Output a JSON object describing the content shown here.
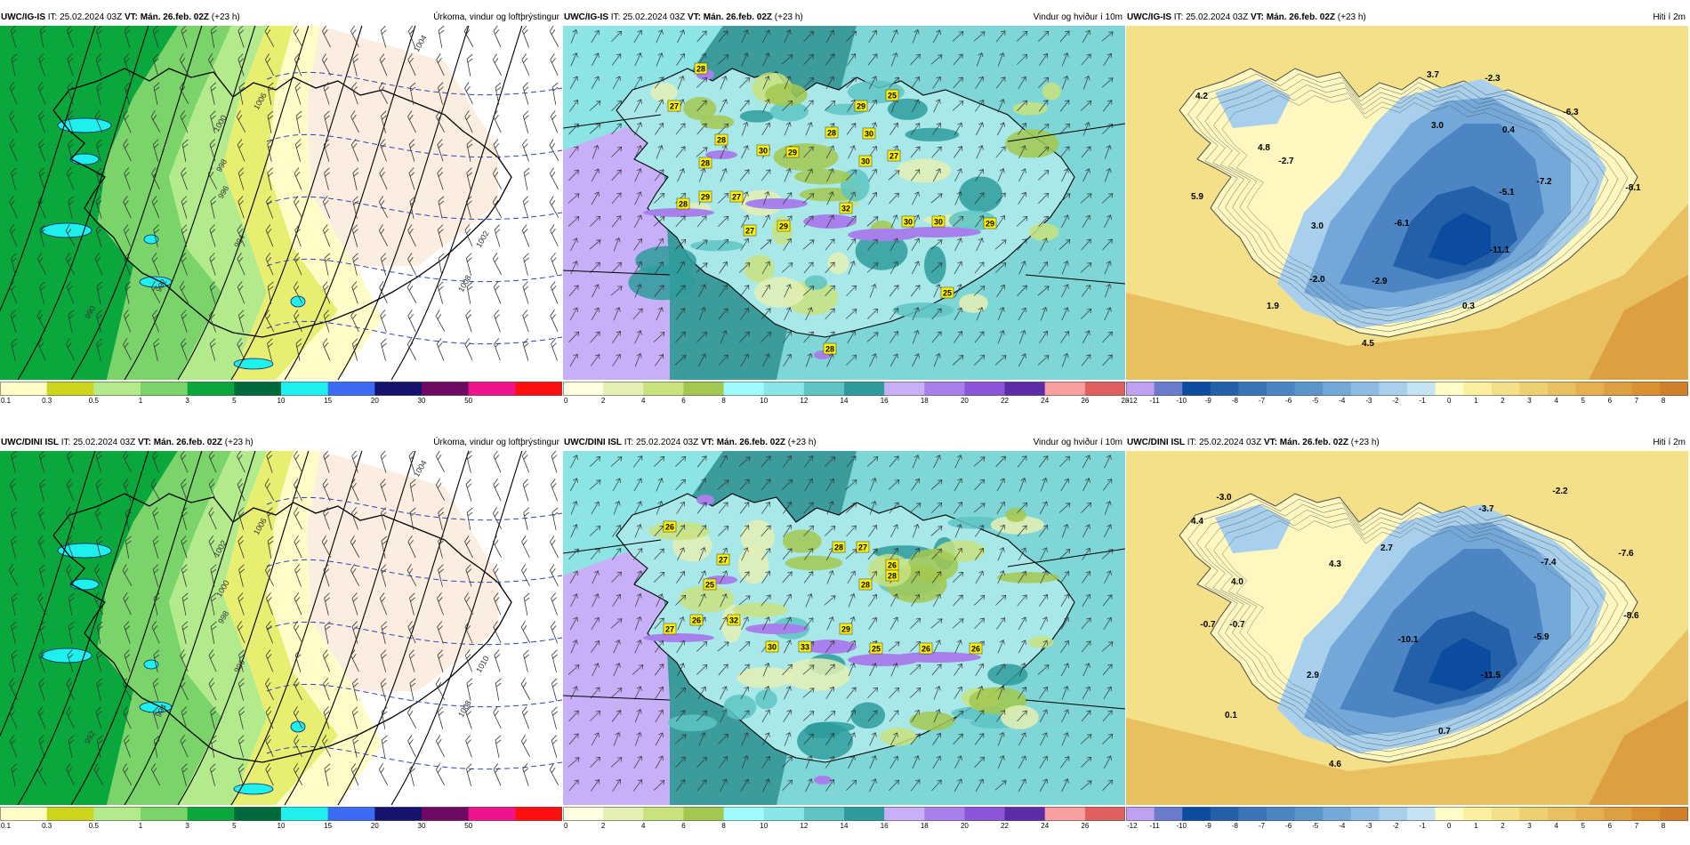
{
  "panels": [
    {
      "model": "UWC/IG-IS",
      "it": "IT: 25.02.2024 03Z",
      "vt_label": "VT:",
      "vt": "Mán. 26.feb. 02Z",
      "lead": "(+23 h)",
      "field": "Úrkoma, vindur og loftþrýstingur",
      "type": "precip",
      "colorbar": [
        "#fffcc8",
        "#cdd41c",
        "#b3ea8c",
        "#7ad46a",
        "#0aa83c",
        "#006a3c",
        "#1ef0ee",
        "#3c6cf4",
        "#14146e",
        "#6e0a64",
        "#f0148c",
        "#ff1010"
      ],
      "ticks": [
        "0.1",
        "0.3",
        "0.5",
        "1",
        "3",
        "5",
        "10",
        "15",
        "20",
        "30",
        "50"
      ],
      "isobars": [
        "1004",
        "1006",
        "1000",
        "998",
        "996",
        "994",
        "992",
        "990",
        "1002",
        "1008"
      ],
      "labels": []
    },
    {
      "model": "UWC/IG-IS",
      "it": "IT: 25.02.2024 03Z",
      "vt_label": "VT:",
      "vt": "Mán. 26.feb. 02Z",
      "lead": "(+23 h)",
      "field": "Vindur og hviður í 10m",
      "type": "wind",
      "colorbar": [
        "#fefee0",
        "#e4f0b4",
        "#c8e27e",
        "#a3c850",
        "#a0fcfc",
        "#88e6e6",
        "#5ec4c4",
        "#2e9c9c",
        "#c8b0f8",
        "#a880ec",
        "#8c54d8",
        "#5c2ca8",
        "#f8a0a0",
        "#e06060"
      ],
      "ticks": [
        "0",
        "2",
        "4",
        "6",
        "8",
        "10",
        "12",
        "14",
        "16",
        "18",
        "20",
        "22",
        "24",
        "26",
        "28"
      ],
      "labels": [
        "28",
        "27",
        "28",
        "28",
        "30",
        "29",
        "28",
        "29",
        "25",
        "30",
        "30",
        "27",
        "28",
        "29",
        "27",
        "32",
        "27",
        "29",
        "30",
        "30",
        "29",
        "25",
        "28"
      ]
    },
    {
      "model": "UWC/IG-IS",
      "it": "IT: 25.02.2024 03Z",
      "vt_label": "VT:",
      "vt": "Mán. 26.feb. 02Z",
      "lead": "(+23 h)",
      "field": "Hiti í 2m",
      "type": "temp",
      "colorbar": [
        "#c0a0f0",
        "#6c7ccc",
        "#0c4ca0",
        "#2460a8",
        "#3c74b8",
        "#4c84c4",
        "#5c94cc",
        "#74a8d8",
        "#8cbce4",
        "#a8d0ec",
        "#c4e4f4",
        "#fffcc8",
        "#fcf0a0",
        "#f4e088",
        "#ecd070",
        "#e8c060",
        "#e4b050",
        "#dca040",
        "#d89030",
        "#d08028"
      ],
      "ticks": [
        "-12",
        "-11",
        "-10",
        "-9",
        "-8",
        "-7",
        "-6",
        "-5",
        "-4",
        "-3",
        "-2",
        "-1",
        "0",
        "1",
        "2",
        "3",
        "4",
        "5",
        "6",
        "7",
        "8"
      ],
      "labels": [
        "4.2",
        "3.7",
        "-2.3",
        "-6.3",
        "-2.7",
        "3.0",
        "4.8",
        "0.4",
        "5.9",
        "-5.1",
        "-7.2",
        "-8.1",
        "3.0",
        "-6.1",
        "-11.1",
        "-2.0",
        "-2.9",
        "1.9",
        "0.3",
        "4.5"
      ]
    },
    {
      "model": "UWC/DINI ISL",
      "it": "IT: 25.02.2024 03Z",
      "vt_label": "VT:",
      "vt": "Mán. 26.feb. 02Z",
      "lead": "(+23 h)",
      "field": "Úrkoma, vindur og loftþrýstingur",
      "type": "precip",
      "colorbar": [
        "#fffcc8",
        "#cdd41c",
        "#b3ea8c",
        "#7ad46a",
        "#0aa83c",
        "#006a3c",
        "#1ef0ee",
        "#3c6cf4",
        "#14146e",
        "#6e0a64",
        "#f0148c",
        "#ff1010"
      ],
      "ticks": [
        "0.1",
        "0.3",
        "0.5",
        "1",
        "3",
        "5",
        "10",
        "15",
        "20",
        "30",
        "50"
      ],
      "isobars": [
        "1004",
        "1006",
        "1002",
        "1000",
        "998",
        "996",
        "994",
        "992",
        "1010",
        "1008"
      ],
      "labels": []
    },
    {
      "model": "UWC/DINI ISL",
      "it": "IT: 25.02.2024 03Z",
      "vt_label": "VT:",
      "vt": "Mán. 26.feb. 02Z",
      "lead": "(+23 h)",
      "field": "Vindur og hviður í 10m",
      "type": "wind",
      "colorbar": [
        "#fefee0",
        "#e4f0b4",
        "#c8e27e",
        "#a3c850",
        "#a0fcfc",
        "#88e6e6",
        "#5ec4c4",
        "#2e9c9c",
        "#c8b0f8",
        "#a880ec",
        "#8c54d8",
        "#5c2ca8",
        "#f8a0a0",
        "#e06060"
      ],
      "ticks": [
        "0",
        "2",
        "4",
        "6",
        "8",
        "10",
        "12",
        "14",
        "16",
        "18",
        "20",
        "22",
        "24",
        "26"
      ],
      "labels": [
        "26",
        "27",
        "25",
        "28",
        "27",
        "26",
        "28",
        "28",
        "27",
        "26",
        "32",
        "29",
        "30",
        "33",
        "25",
        "26",
        "26"
      ]
    },
    {
      "model": "UWC/DINI ISL",
      "it": "IT: 25.02.2024 03Z",
      "vt_label": "VT:",
      "vt": "Mán. 26.feb. 02Z",
      "lead": "(+23 h)",
      "field": "Hiti í 2m",
      "type": "temp",
      "colorbar": [
        "#c0a0f0",
        "#6c7ccc",
        "#0c4ca0",
        "#2460a8",
        "#3c74b8",
        "#4c84c4",
        "#5c94cc",
        "#74a8d8",
        "#8cbce4",
        "#a8d0ec",
        "#c4e4f4",
        "#fffcc8",
        "#fcf0a0",
        "#f4e088",
        "#ecd070",
        "#e8c060",
        "#e4b050",
        "#dca040",
        "#d89030",
        "#d08028"
      ],
      "ticks": [
        "-12",
        "-11",
        "-10",
        "-9",
        "-8",
        "-7",
        "-6",
        "-5",
        "-4",
        "-3",
        "-2",
        "-1",
        "0",
        "1",
        "2",
        "3",
        "4",
        "5",
        "6",
        "7",
        "8"
      ],
      "labels": [
        "-3.0",
        "-2.2",
        "4.4",
        "-3.7",
        "-7.6",
        "4.3",
        "2.7",
        "-7.4",
        "4.0",
        "-0.7",
        "-0.7",
        "-10.1",
        "-5.9",
        "-8.6",
        "2.9",
        "-11.5",
        "0.1",
        "0.7",
        "4.6"
      ]
    }
  ]
}
